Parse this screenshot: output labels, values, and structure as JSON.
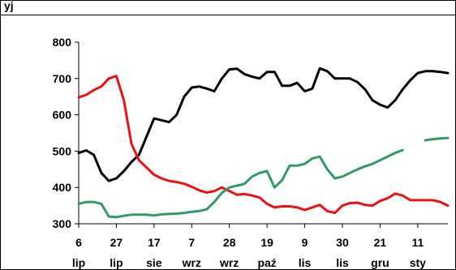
{
  "chart_data": {
    "type": "line",
    "title": "",
    "title_fragment": "yj",
    "xlabel": "",
    "ylabel": "",
    "ylim": [
      300,
      800
    ],
    "yticks": [
      300,
      400,
      500,
      600,
      700,
      800
    ],
    "grid": false,
    "legend": "none",
    "x_range": [
      0,
      49
    ],
    "tick_positions": [
      0,
      5,
      10,
      15,
      20,
      25,
      30,
      35,
      40,
      45
    ],
    "tick_labels": [
      {
        "day": "6",
        "month": "lip"
      },
      {
        "day": "27",
        "month": "lip"
      },
      {
        "day": "17",
        "month": "sie"
      },
      {
        "day": "7",
        "month": "wrz"
      },
      {
        "day": "28",
        "month": "wrz"
      },
      {
        "day": "19",
        "month": "paź"
      },
      {
        "day": "9",
        "month": "lis"
      },
      {
        "day": "30",
        "month": "lis"
      },
      {
        "day": "21",
        "month": "gru"
      },
      {
        "day": "11",
        "month": "sty"
      }
    ],
    "series": [
      {
        "color": "#000000",
        "points": [
          [
            0,
            495
          ],
          [
            1,
            502
          ],
          [
            2,
            490
          ],
          [
            3,
            440
          ],
          [
            4,
            418
          ],
          [
            5,
            425
          ],
          [
            6,
            445
          ],
          [
            7,
            470
          ],
          [
            8,
            490
          ],
          [
            9,
            540
          ],
          [
            10,
            590
          ],
          [
            11,
            585
          ],
          [
            12,
            580
          ],
          [
            13,
            600
          ],
          [
            14,
            650
          ],
          [
            15,
            675
          ],
          [
            16,
            678
          ],
          [
            17,
            672
          ],
          [
            18,
            665
          ],
          [
            19,
            700
          ],
          [
            20,
            725
          ],
          [
            21,
            727
          ],
          [
            22,
            712
          ],
          [
            23,
            705
          ],
          [
            24,
            700
          ],
          [
            25,
            718
          ],
          [
            26,
            718
          ],
          [
            27,
            680
          ],
          [
            28,
            680
          ],
          [
            29,
            688
          ],
          [
            30,
            665
          ],
          [
            31,
            672
          ],
          [
            32,
            728
          ],
          [
            33,
            720
          ],
          [
            34,
            700
          ],
          [
            35,
            700
          ],
          [
            36,
            700
          ],
          [
            37,
            690
          ],
          [
            38,
            670
          ],
          [
            39,
            640
          ],
          [
            40,
            628
          ],
          [
            41,
            620
          ],
          [
            42,
            640
          ],
          [
            43,
            670
          ],
          [
            44,
            695
          ],
          [
            45,
            715
          ],
          [
            46,
            720
          ],
          [
            47,
            720
          ],
          [
            48,
            718
          ],
          [
            49,
            715
          ]
        ]
      },
      {
        "color": "#ee1111",
        "points": [
          [
            0,
            648
          ],
          [
            1,
            655
          ],
          [
            2,
            668
          ],
          [
            3,
            678
          ],
          [
            4,
            700
          ],
          [
            5,
            707
          ],
          [
            6,
            640
          ],
          [
            7,
            520
          ],
          [
            8,
            475
          ],
          [
            9,
            455
          ],
          [
            10,
            435
          ],
          [
            11,
            425
          ],
          [
            12,
            418
          ],
          [
            13,
            415
          ],
          [
            14,
            410
          ],
          [
            15,
            402
          ],
          [
            16,
            392
          ],
          [
            17,
            386
          ],
          [
            18,
            390
          ],
          [
            19,
            400
          ],
          [
            20,
            390
          ],
          [
            21,
            380
          ],
          [
            22,
            382
          ],
          [
            23,
            378
          ],
          [
            24,
            372
          ],
          [
            25,
            355
          ],
          [
            26,
            345
          ],
          [
            27,
            348
          ],
          [
            28,
            348
          ],
          [
            29,
            345
          ],
          [
            30,
            338
          ],
          [
            31,
            345
          ],
          [
            32,
            352
          ],
          [
            33,
            335
          ],
          [
            34,
            330
          ],
          [
            35,
            350
          ],
          [
            36,
            357
          ],
          [
            37,
            358
          ],
          [
            38,
            352
          ],
          [
            39,
            350
          ],
          [
            40,
            363
          ],
          [
            41,
            370
          ],
          [
            42,
            383
          ],
          [
            43,
            378
          ],
          [
            44,
            365
          ],
          [
            45,
            365
          ],
          [
            46,
            365
          ],
          [
            47,
            365
          ],
          [
            48,
            360
          ],
          [
            49,
            350
          ]
        ]
      },
      {
        "color": "#339966",
        "points": [
          [
            0,
            355
          ],
          [
            1,
            360
          ],
          [
            2,
            360
          ],
          [
            3,
            355
          ],
          [
            4,
            320
          ],
          [
            5,
            318
          ],
          [
            6,
            322
          ],
          [
            7,
            325
          ],
          [
            8,
            325
          ],
          [
            9,
            325
          ],
          [
            10,
            323
          ],
          [
            11,
            326
          ],
          [
            12,
            327
          ],
          [
            13,
            328
          ],
          [
            14,
            330
          ],
          [
            15,
            333
          ],
          [
            16,
            335
          ],
          [
            17,
            340
          ],
          [
            18,
            360
          ],
          [
            19,
            385
          ],
          [
            20,
            400
          ],
          [
            21,
            405
          ],
          [
            22,
            410
          ],
          [
            23,
            430
          ],
          [
            24,
            440
          ],
          [
            25,
            445
          ],
          [
            26,
            400
          ],
          [
            27,
            420
          ],
          [
            28,
            460
          ],
          [
            29,
            460
          ],
          [
            30,
            465
          ],
          [
            31,
            480
          ],
          [
            32,
            485
          ],
          [
            33,
            450
          ],
          [
            34,
            425
          ],
          [
            35,
            430
          ],
          [
            36,
            440
          ],
          [
            37,
            450
          ],
          [
            38,
            458
          ],
          [
            39,
            465
          ],
          [
            40,
            475
          ],
          [
            41,
            485
          ],
          [
            42,
            495
          ],
          [
            43,
            503
          ],
          null,
          [
            46,
            530
          ],
          [
            47,
            533
          ],
          [
            48,
            535
          ],
          [
            49,
            536
          ]
        ]
      }
    ]
  }
}
